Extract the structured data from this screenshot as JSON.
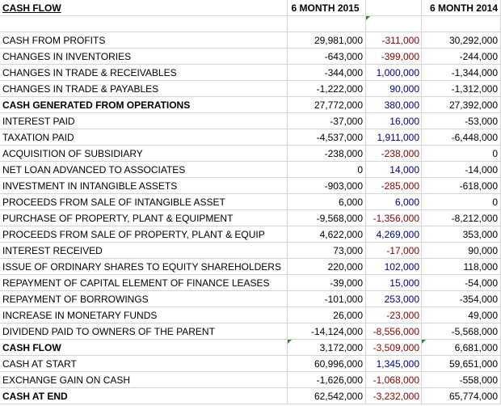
{
  "header": {
    "title": "CASH FLOW",
    "col1": "6 MONTH 2015",
    "col2": "",
    "col3": "6 MONTH 2014"
  },
  "rows": [
    {
      "label": "CASH FROM PROFITS",
      "v2015": "29,981,000",
      "change": "-311,000",
      "change_sign": "neg",
      "v2014": "30,292,000"
    },
    {
      "label": "CHANGES IN INVENTORIES",
      "v2015": "-643,000",
      "change": "-399,000",
      "change_sign": "neg",
      "v2014": "-244,000"
    },
    {
      "label": "CHANGES IN TRADE & RECEIVABLES",
      "v2015": "-344,000",
      "change": "1,000,000",
      "change_sign": "pos",
      "v2014": "-1,344,000"
    },
    {
      "label": "CHANGES IN TRADE & PAYABLES",
      "v2015": "-1,222,000",
      "change": "90,000",
      "change_sign": "pos",
      "v2014": "-1,312,000"
    },
    {
      "label": "CASH GENERATED FROM OPERATIONS",
      "v2015": "27,772,000",
      "change": "380,000",
      "change_sign": "pos",
      "v2014": "27,392,000"
    },
    {
      "label": "INTEREST PAID",
      "v2015": "-37,000",
      "change": "16,000",
      "change_sign": "pos",
      "v2014": "-53,000"
    },
    {
      "label": "TAXATION PAID",
      "v2015": "-4,537,000",
      "change": "1,911,000",
      "change_sign": "pos",
      "v2014": "-6,448,000"
    },
    {
      "label": "ACQUISITION OF SUBSIDIARY",
      "v2015": "-238,000",
      "change": "-238,000",
      "change_sign": "neg",
      "v2014": "0"
    },
    {
      "label": "NET LOAN ADVANCED TO ASSOCIATES",
      "v2015": "0",
      "change": "14,000",
      "change_sign": "pos",
      "v2014": "-14,000"
    },
    {
      "label": "INVESTMENT IN INTANGIBLE ASSETS",
      "v2015": "-903,000",
      "change": "-285,000",
      "change_sign": "neg",
      "v2014": "-618,000"
    },
    {
      "label": "PROCEEDS FROM SALE OF INTANGIBLE ASSET",
      "v2015": "6,000",
      "change": "6,000",
      "change_sign": "pos",
      "v2014": "0"
    },
    {
      "label": "PURCHASE OF PROPERTY, PLANT & EQUIPMENT",
      "v2015": "-9,568,000",
      "change": "-1,356,000",
      "change_sign": "neg",
      "v2014": "-8,212,000"
    },
    {
      "label": "PROCEEDS FROM SALE OF PROPERTY, PLANT & EQUIP",
      "v2015": "4,622,000",
      "change": "4,269,000",
      "change_sign": "pos",
      "v2014": "353,000"
    },
    {
      "label": "INTEREST RECEIVED",
      "v2015": "73,000",
      "change": "-17,000",
      "change_sign": "neg",
      "v2014": "90,000"
    },
    {
      "label": "ISSUE OF ORDINARY SHARES TO EQUITY SHAREHOLDERS",
      "v2015": "220,000",
      "change": "102,000",
      "change_sign": "pos",
      "v2014": "118,000"
    },
    {
      "label": "REPAYMENT OF CAPITAL ELEMENT OF FINANCE LEASES",
      "v2015": "-39,000",
      "change": "15,000",
      "change_sign": "pos",
      "v2014": "-54,000"
    },
    {
      "label": "REPAYMENT OF BORROWINGS",
      "v2015": "-101,000",
      "change": "253,000",
      "change_sign": "pos",
      "v2014": "-354,000"
    },
    {
      "label": "INCREASE IN MONETARY FUNDS",
      "v2015": "26,000",
      "change": "-23,000",
      "change_sign": "neg",
      "v2014": "49,000"
    },
    {
      "label": "DIVIDEND PAID TO OWNERS OF THE PARENT",
      "v2015": "-14,124,000",
      "change": "-8,556,000",
      "change_sign": "neg",
      "v2014": "-5,568,000"
    },
    {
      "label": "CASH FLOW",
      "v2015": "3,172,000",
      "change": "-3,509,000",
      "change_sign": "neg",
      "v2014": "6,681,000"
    },
    {
      "label": "CASH AT START",
      "v2015": "60,996,000",
      "change": "1,345,000",
      "change_sign": "pos",
      "v2014": "59,651,000"
    },
    {
      "label": "EXCHANGE GAIN ON CASH",
      "v2015": "-1,626,000",
      "change": "-1,068,000",
      "change_sign": "neg",
      "v2014": "-558,000"
    },
    {
      "label": "CASH AT END",
      "v2015": "62,542,000",
      "change": "-3,232,000",
      "change_sign": "neg",
      "v2014": "65,774,000"
    }
  ],
  "colors": {
    "negative": "#8b0000",
    "positive": "#00008b",
    "grid": "#d4d4d4",
    "comment_flag": "#1f8f1f"
  }
}
